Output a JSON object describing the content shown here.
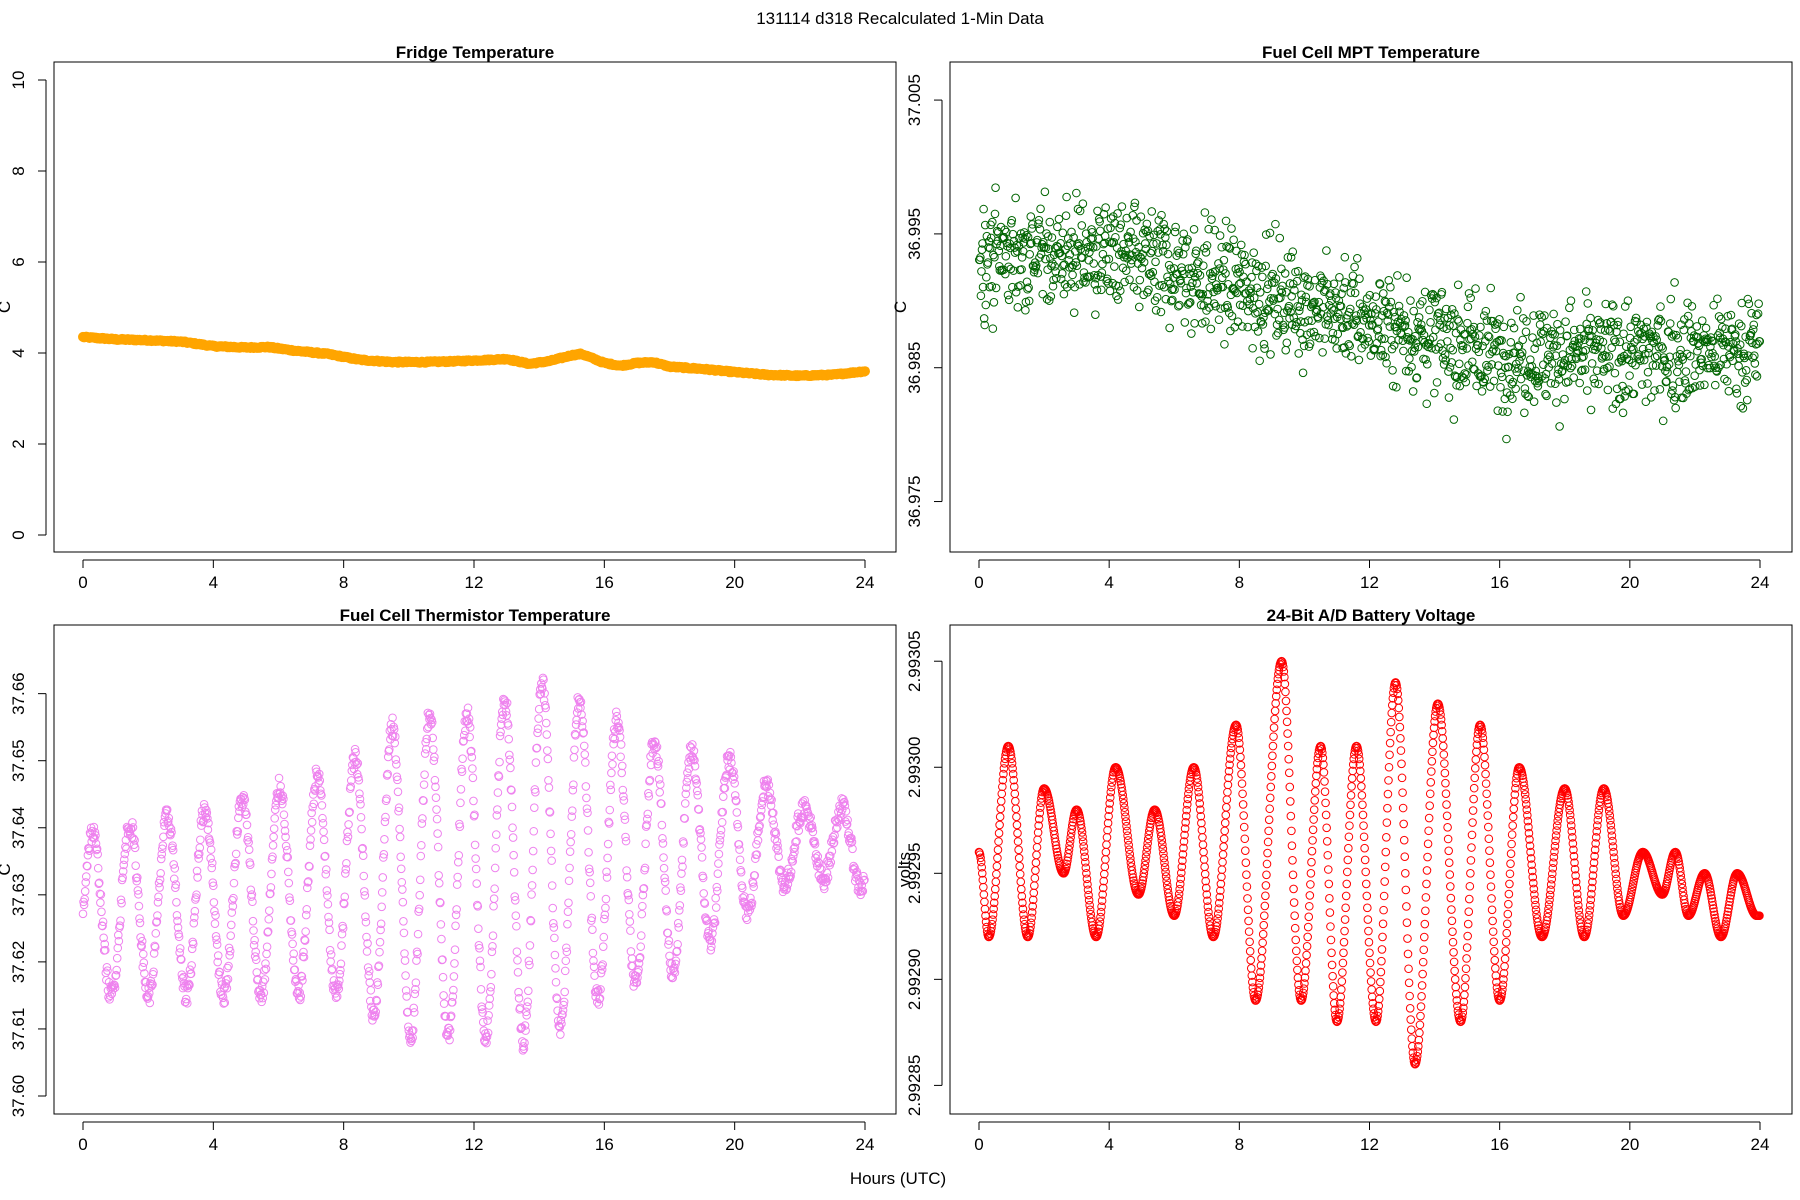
{
  "figure": {
    "title": "131114   d318   Recalculated 1-Min Data",
    "xlabel": "Hours (UTC)"
  },
  "chart_data": [
    {
      "type": "scatter",
      "title": "Fridge Temperature",
      "xlabel": "Hours (UTC)",
      "ylabel": "C",
      "xlim": [
        0,
        24
      ],
      "ylim": [
        0,
        10
      ],
      "xticks": [
        "0",
        "4",
        "8",
        "12",
        "16",
        "20",
        "24"
      ],
      "yticks": [
        "0",
        "2",
        "4",
        "6",
        "8",
        "10"
      ],
      "color": "#FFA500",
      "marker": "filled-circle",
      "series": [
        {
          "name": "Fridge Temperature",
          "x": [
            0,
            1,
            2,
            3,
            4,
            5,
            5.7,
            6.5,
            7.5,
            8.5,
            9.5,
            10.5,
            11.5,
            12.5,
            13,
            13.7,
            14.3,
            15,
            15.3,
            16,
            16.5,
            17,
            17.5,
            18,
            19,
            20,
            21,
            22,
            23,
            24
          ],
          "y": [
            4.35,
            4.3,
            4.28,
            4.25,
            4.15,
            4.12,
            4.13,
            4.05,
            3.98,
            3.85,
            3.8,
            3.8,
            3.82,
            3.85,
            3.87,
            3.76,
            3.82,
            3.95,
            3.98,
            3.78,
            3.72,
            3.78,
            3.8,
            3.7,
            3.65,
            3.58,
            3.52,
            3.5,
            3.52,
            3.6
          ]
        }
      ]
    },
    {
      "type": "scatter",
      "title": "Fuel Cell MPT Temperature",
      "xlabel": "Hours (UTC)",
      "ylabel": "C",
      "xlim": [
        0,
        24
      ],
      "ylim": [
        36.9725,
        37.0065
      ],
      "xticks": [
        "0",
        "4",
        "8",
        "12",
        "16",
        "20",
        "24"
      ],
      "yticks": [
        "36.975",
        "36.985",
        "36.995",
        "37.005"
      ],
      "color": "#006400",
      "marker": "open-circle",
      "series": [
        {
          "name": "Fuel Cell MPT Temperature",
          "x": [
            0,
            4,
            8,
            12,
            16,
            20,
            24
          ],
          "y": [
            36.9935,
            36.9935,
            36.991,
            36.9885,
            36.986,
            36.986,
            36.9865
          ],
          "spread": 0.0042,
          "points_per_hour": 60
        }
      ]
    },
    {
      "type": "scatter",
      "title": "Fuel Cell Thermistor Temperature",
      "xlabel": "Hours (UTC)",
      "ylabel": "C",
      "xlim": [
        0,
        24
      ],
      "ylim": [
        37.6,
        37.668
      ],
      "xticks": [
        "0",
        "4",
        "8",
        "12",
        "16",
        "20",
        "24"
      ],
      "yticks": [
        "37.60",
        "37.61",
        "37.62",
        "37.63",
        "37.64",
        "37.65",
        "37.66"
      ],
      "color": "#EE82EE",
      "marker": "open-circle",
      "series": [
        {
          "name": "Fuel Cell Thermistor Temperature",
          "envelope_x": [
            0,
            4,
            8,
            10,
            12,
            14,
            16,
            18,
            20,
            22,
            24
          ],
          "envelope_center": [
            37.627,
            37.629,
            37.632,
            37.633,
            37.633,
            37.635,
            37.636,
            37.635,
            37.638,
            37.638,
            37.637
          ],
          "envelope_amplitude": [
            0.012,
            0.014,
            0.017,
            0.024,
            0.024,
            0.027,
            0.021,
            0.017,
            0.012,
            0.005,
            0.006
          ],
          "period_hours": 1.15,
          "points_per_hour": 60
        }
      ]
    },
    {
      "type": "scatter",
      "title": "24-Bit A/D Battery Voltage",
      "xlabel": "Hours (UTC)",
      "ylabel": "volts",
      "xlim": [
        0,
        24
      ],
      "ylim": [
        2.992845,
        2.99306
      ],
      "xticks": [
        "0",
        "4",
        "8",
        "12",
        "16",
        "20",
        "24"
      ],
      "yticks": [
        "2.99285",
        "2.99290",
        "2.99295",
        "2.99300",
        "2.99305"
      ],
      "color": "#FF0000",
      "marker": "open-circle",
      "series": [
        {
          "name": "24-Bit A/D Battery Voltage",
          "extrema_x": [
            0,
            0.3,
            0.9,
            1.5,
            2.0,
            2.6,
            3.0,
            3.6,
            4.2,
            4.9,
            5.4,
            6.0,
            6.6,
            7.2,
            7.9,
            8.5,
            9.3,
            9.9,
            10.5,
            11.0,
            11.6,
            12.2,
            12.8,
            13.4,
            14.1,
            14.8,
            15.4,
            16.0,
            16.6,
            17.3,
            18.0,
            18.6,
            19.2,
            19.8,
            20.4,
            21.0,
            21.4,
            21.8,
            22.3,
            22.8,
            23.3,
            23.9
          ],
          "extrema_y": [
            2.99296,
            2.99292,
            2.99301,
            2.99292,
            2.99299,
            2.99295,
            2.99298,
            2.99292,
            2.993,
            2.99294,
            2.99298,
            2.99293,
            2.993,
            2.99292,
            2.99302,
            2.99289,
            2.99305,
            2.99289,
            2.99301,
            2.99288,
            2.99301,
            2.99288,
            2.99304,
            2.99286,
            2.99303,
            2.99288,
            2.99302,
            2.99289,
            2.993,
            2.99292,
            2.99299,
            2.99292,
            2.99299,
            2.99293,
            2.99296,
            2.99294,
            2.99296,
            2.99293,
            2.99295,
            2.99292,
            2.99295,
            2.99293
          ],
          "points_per_hour": 60
        }
      ]
    }
  ]
}
